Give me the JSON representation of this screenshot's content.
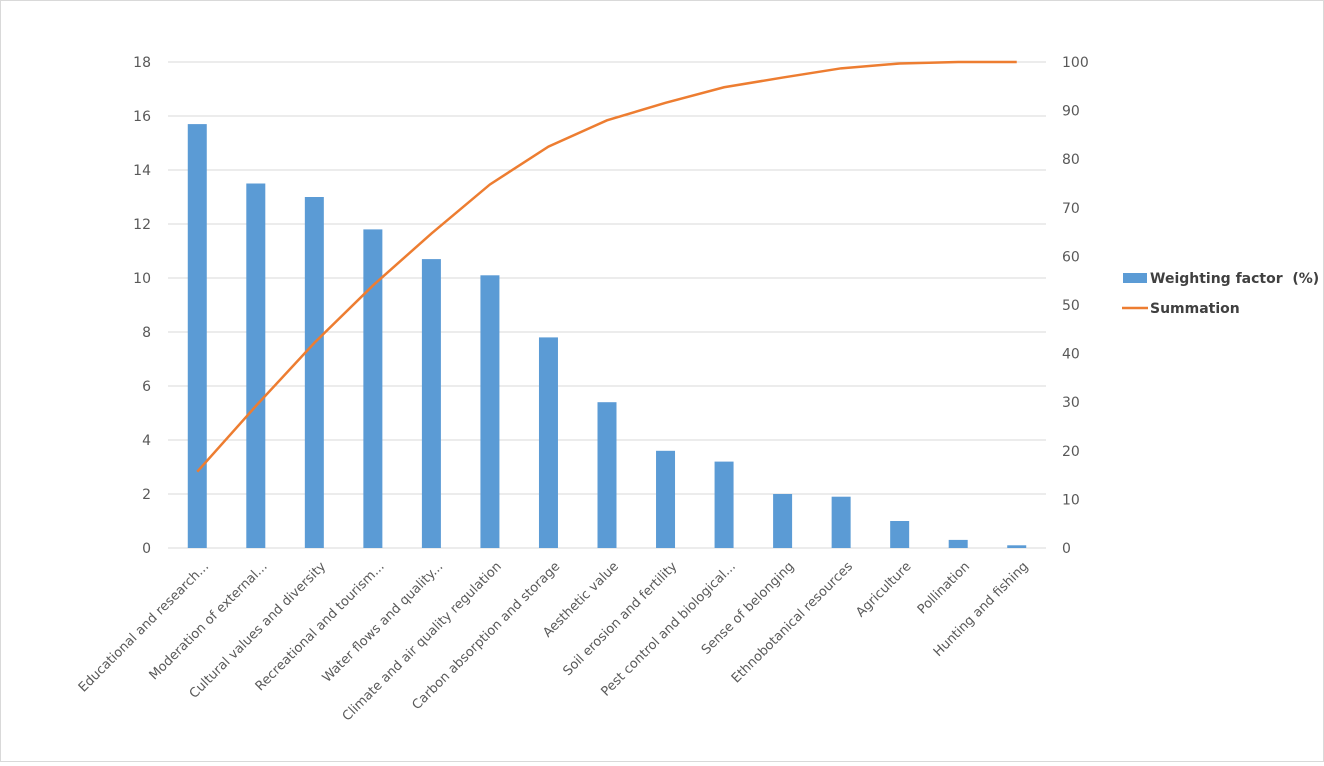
{
  "chart_data": {
    "type": "bar",
    "title": "",
    "xlabel": "",
    "ylabel": "",
    "categories": [
      "Educational and research...",
      "Moderation of external...",
      "Cultural values and diversity",
      "Recreational and tourism...",
      "Water flows and quality...",
      "Climate and air quality regulation",
      "Carbon absorption and storage",
      "Aesthetic value",
      "Soil erosion and fertility",
      "Pest control and biological...",
      "Sense of belonging",
      "Ethnobotanical resources",
      "Agriculture",
      "Pollination",
      "Hunting and fishing"
    ],
    "series": [
      {
        "name": "Weighting factor  (%)",
        "type": "bar",
        "axis": "left",
        "color": "#5b9bd5",
        "values": [
          15.7,
          13.5,
          13.0,
          11.8,
          10.7,
          10.1,
          7.8,
          5.4,
          3.6,
          3.2,
          2.0,
          1.9,
          1.0,
          0.3,
          0.1
        ]
      },
      {
        "name": "Summation",
        "type": "line",
        "axis": "right",
        "color": "#ed7d31",
        "values": [
          15.7,
          29.2,
          42.2,
          54.0,
          64.7,
          74.8,
          82.6,
          88.0,
          91.6,
          94.8,
          96.8,
          98.7,
          99.7,
          100,
          100
        ]
      }
    ],
    "ylim": [
      0,
      18
    ],
    "yticks": [
      0,
      2,
      4,
      6,
      8,
      10,
      12,
      14,
      16,
      18
    ],
    "y2lim": [
      0,
      100
    ],
    "y2ticks": [
      0,
      10,
      20,
      30,
      40,
      50,
      60,
      70,
      80,
      90,
      100
    ],
    "grid": true,
    "legend_position": "right"
  }
}
